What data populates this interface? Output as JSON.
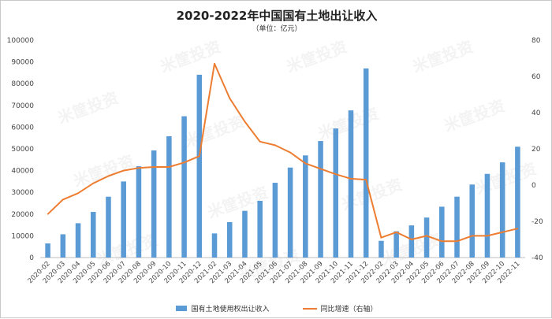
{
  "header": {
    "title": "2020-2022年中国国有土地出让收入",
    "subtitle": "（单位：亿元）"
  },
  "watermark": {
    "text": "米筐投资"
  },
  "chart_data": {
    "type": "bar",
    "categories": [
      "2020-02",
      "2020-03",
      "2020-04",
      "2020-05",
      "2020-06",
      "2020-07",
      "2020-08",
      "2020-09",
      "2020-10",
      "2020-11",
      "2020-12",
      "2021-02",
      "2021-03",
      "2021-04",
      "2021-05",
      "2021-06",
      "2021-07",
      "2021-08",
      "2021-09",
      "2021-10",
      "2021-11",
      "2021-12",
      "2022-02",
      "2022-03",
      "2022-04",
      "2022-05",
      "2022-06",
      "2022-07",
      "2022-08",
      "2022-09",
      "2022-10",
      "2022-11"
    ],
    "series": [
      {
        "name": "国有土地使用权出让收入",
        "type": "bar",
        "axis": "left",
        "color": "#5b9bd5",
        "values": [
          6500,
          10700,
          15800,
          21000,
          28000,
          35000,
          42000,
          49300,
          55800,
          65000,
          84100,
          11100,
          16300,
          21500,
          26100,
          34400,
          41400,
          47000,
          53600,
          59400,
          67700,
          87000,
          7700,
          12100,
          14800,
          18400,
          23400,
          28000,
          33600,
          38500,
          43800,
          51000
        ]
      },
      {
        "name": "同比增速（右轴）",
        "type": "line",
        "axis": "right",
        "color": "#ed7d31",
        "values": [
          -16,
          -8,
          -4.5,
          1,
          5,
          8,
          9.5,
          10,
          10,
          12.5,
          16,
          67,
          48,
          35,
          24,
          22,
          18,
          12,
          9,
          6,
          3.5,
          3,
          -29,
          -26,
          -30,
          -28,
          -31,
          -31,
          -28,
          -28,
          -26,
          -24
        ]
      }
    ],
    "y_left": {
      "lim": [
        0,
        100000
      ],
      "ticks": [
        0,
        10000,
        20000,
        30000,
        40000,
        50000,
        60000,
        70000,
        80000,
        90000,
        100000
      ]
    },
    "y_right": {
      "lim": [
        -40,
        80
      ],
      "ticks": [
        -40,
        -20,
        0,
        20,
        40,
        60,
        80
      ]
    },
    "grid": false,
    "legend": "bottom"
  }
}
